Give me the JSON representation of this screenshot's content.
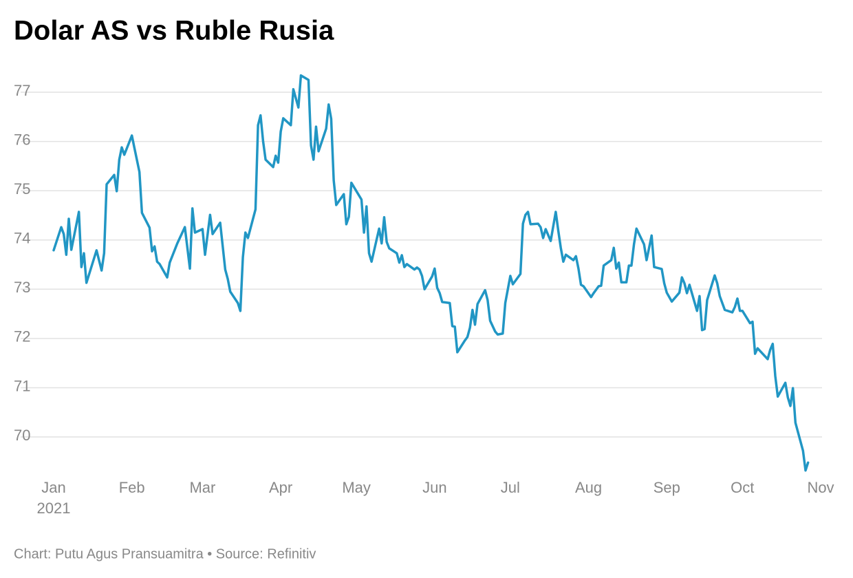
{
  "chart_data": {
    "type": "line",
    "title": "Dolar AS vs Ruble Rusia",
    "caption": "Chart: Putu Agus Pransuamitra • Source: Refinitiv",
    "year_label": "2021",
    "color": "#2196c4",
    "grid": true,
    "xlim": [
      0,
      304
    ],
    "xticks": [
      {
        "value": 0,
        "label": "Jan"
      },
      {
        "value": 31,
        "label": "Feb"
      },
      {
        "value": 59,
        "label": "Mar"
      },
      {
        "value": 90,
        "label": "Apr"
      },
      {
        "value": 120,
        "label": "May"
      },
      {
        "value": 151,
        "label": "Jun"
      },
      {
        "value": 181,
        "label": "Jul"
      },
      {
        "value": 212,
        "label": "Aug"
      },
      {
        "value": 243,
        "label": "Sep"
      },
      {
        "value": 273,
        "label": "Oct"
      },
      {
        "value": 304,
        "label": "Nov"
      }
    ],
    "ylim": [
      69.2,
      77.5
    ],
    "yticks": [
      70,
      71,
      72,
      73,
      74,
      75,
      76,
      77
    ],
    "x": [
      0,
      3,
      4,
      5,
      6,
      7,
      10,
      11,
      12,
      13,
      17,
      19,
      20,
      21,
      24,
      25,
      26,
      27,
      28,
      31,
      32,
      34,
      35,
      38,
      39,
      40,
      41,
      42,
      45,
      46,
      49,
      52,
      54,
      55,
      56,
      59,
      60,
      62,
      63,
      66,
      68,
      69,
      70,
      73,
      74,
      75,
      76,
      77,
      80,
      81,
      82,
      83,
      84,
      87,
      88,
      89,
      90,
      91,
      94,
      95,
      97,
      98,
      101,
      102,
      103,
      104,
      105,
      108,
      109,
      110,
      111,
      112,
      115,
      116,
      117,
      118,
      122,
      123,
      124,
      125,
      126,
      129,
      130,
      131,
      132,
      133,
      136,
      137,
      138,
      139,
      140,
      143,
      144,
      145,
      146,
      147,
      150,
      151,
      152,
      153,
      154,
      157,
      158,
      159,
      160,
      163,
      164,
      165,
      166,
      167,
      168,
      171,
      172,
      173,
      175,
      176,
      178,
      179,
      181,
      182,
      185,
      186,
      187,
      188,
      189,
      192,
      193,
      194,
      195,
      197,
      199,
      200,
      201,
      202,
      203,
      206,
      207,
      208,
      209,
      210,
      213,
      214,
      216,
      217,
      218,
      221,
      222,
      223,
      224,
      225,
      227,
      228,
      229,
      230,
      231,
      234,
      235,
      236,
      237,
      238,
      241,
      242,
      243,
      244,
      245,
      248,
      249,
      250,
      251,
      252,
      255,
      256,
      257,
      258,
      259,
      262,
      263,
      264,
      266,
      269,
      270,
      271,
      272,
      273,
      276,
      277,
      278,
      279,
      283,
      284,
      285,
      286,
      287,
      290,
      291,
      292,
      293,
      294,
      297,
      298,
      299
    ],
    "values": [
      73.79,
      74.26,
      74.12,
      73.7,
      74.43,
      73.8,
      74.57,
      73.45,
      73.73,
      73.13,
      73.79,
      73.38,
      73.73,
      75.13,
      75.32,
      74.99,
      75.63,
      75.88,
      75.73,
      76.12,
      75.87,
      75.38,
      74.55,
      74.25,
      73.77,
      73.87,
      73.56,
      73.51,
      73.24,
      73.54,
      73.93,
      74.26,
      73.42,
      74.64,
      74.15,
      74.22,
      73.7,
      74.51,
      74.12,
      74.35,
      73.4,
      73.21,
      72.95,
      72.72,
      72.56,
      73.65,
      74.15,
      74.04,
      74.62,
      76.33,
      76.53,
      76.01,
      75.63,
      75.48,
      75.71,
      75.57,
      76.2,
      76.47,
      76.33,
      77.06,
      76.69,
      77.34,
      77.25,
      75.92,
      75.63,
      76.3,
      75.8,
      76.26,
      76.75,
      76.46,
      75.21,
      74.71,
      74.93,
      74.32,
      74.47,
      75.16,
      74.82,
      74.15,
      74.68,
      73.73,
      73.56,
      74.23,
      73.93,
      74.46,
      73.96,
      73.83,
      73.73,
      73.54,
      73.69,
      73.45,
      73.51,
      73.4,
      73.44,
      73.4,
      73.27,
      73.0,
      73.26,
      73.42,
      73.03,
      72.92,
      72.74,
      72.72,
      72.25,
      72.24,
      71.72,
      71.96,
      72.03,
      72.22,
      72.58,
      72.28,
      72.7,
      72.98,
      72.78,
      72.36,
      72.14,
      72.08,
      72.1,
      72.72,
      73.27,
      73.1,
      73.31,
      74.33,
      74.51,
      74.57,
      74.32,
      74.33,
      74.26,
      74.04,
      74.22,
      73.98,
      74.57,
      74.19,
      73.84,
      73.56,
      73.7,
      73.59,
      73.67,
      73.42,
      73.09,
      73.06,
      72.84,
      72.92,
      73.06,
      73.07,
      73.48,
      73.59,
      73.84,
      73.42,
      73.54,
      73.14,
      73.14,
      73.48,
      73.48,
      73.91,
      74.23,
      73.91,
      73.59,
      73.84,
      74.09,
      73.45,
      73.41,
      73.12,
      72.93,
      72.84,
      72.75,
      72.93,
      73.24,
      73.12,
      72.92,
      73.09,
      72.56,
      72.86,
      72.17,
      72.19,
      72.78,
      73.28,
      73.12,
      72.86,
      72.58,
      72.53,
      72.64,
      72.81,
      72.56,
      72.56,
      72.31,
      72.34,
      71.69,
      71.8,
      71.58,
      71.77,
      71.89,
      71.24,
      70.82,
      71.1,
      70.8,
      70.63,
      70.99,
      70.29,
      69.72,
      69.32,
      69.48
    ]
  }
}
